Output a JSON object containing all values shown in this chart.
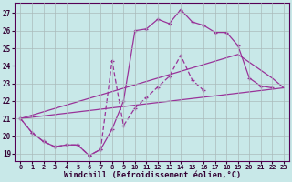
{
  "background_color": "#c8e8e8",
  "grid_color": "#aabbbb",
  "line_color": "#993399",
  "xlabel": "Windchill (Refroidissement éolien,°C)",
  "xlabel_fontsize": 6.2,
  "ylim": [
    18.6,
    27.6
  ],
  "xlim": [
    -0.5,
    23.5
  ],
  "yticks": [
    19,
    20,
    21,
    22,
    23,
    24,
    25,
    26,
    27
  ],
  "xticks": [
    0,
    1,
    2,
    3,
    4,
    5,
    6,
    7,
    8,
    9,
    10,
    11,
    12,
    13,
    14,
    15,
    16,
    17,
    18,
    19,
    20,
    21,
    22,
    23
  ],
  "series": [
    {
      "name": "main_curve",
      "x": [
        0,
        1,
        2,
        3,
        4,
        5,
        6,
        7,
        8,
        9,
        10,
        11,
        12,
        13,
        14,
        15,
        16,
        17,
        18,
        19,
        20,
        21,
        22
      ],
      "y": [
        21.0,
        20.2,
        19.7,
        19.4,
        19.5,
        19.5,
        18.9,
        19.25,
        20.4,
        22.0,
        26.0,
        26.1,
        26.65,
        26.4,
        27.2,
        26.5,
        26.3,
        25.9,
        25.9,
        25.15,
        23.3,
        22.85,
        22.75
      ],
      "marker": "+",
      "linestyle": "-",
      "linewidth": 0.9
    },
    {
      "name": "spike_curve",
      "x": [
        0,
        1,
        2,
        3,
        4,
        5,
        6,
        7,
        8,
        9,
        10,
        11,
        12,
        13,
        14,
        15,
        16,
        17,
        18,
        19,
        20,
        21,
        22,
        23
      ],
      "y": [
        21.0,
        20.2,
        19.7,
        19.4,
        19.5,
        19.5,
        18.9,
        19.25,
        24.3,
        20.6,
        21.6,
        22.2,
        22.8,
        23.4,
        24.6,
        23.2,
        22.6,
        null,
        null,
        null,
        null,
        null,
        null,
        null
      ],
      "marker": "+",
      "linestyle": "--",
      "linewidth": 0.9
    },
    {
      "name": "straight_low",
      "x": [
        0,
        23
      ],
      "y": [
        21.0,
        22.75
      ],
      "marker": null,
      "linestyle": "-",
      "linewidth": 0.9
    },
    {
      "name": "straight_high",
      "x": [
        0,
        19,
        22,
        23
      ],
      "y": [
        21.0,
        24.65,
        23.3,
        22.75
      ],
      "marker": null,
      "linestyle": "-",
      "linewidth": 0.9
    }
  ]
}
